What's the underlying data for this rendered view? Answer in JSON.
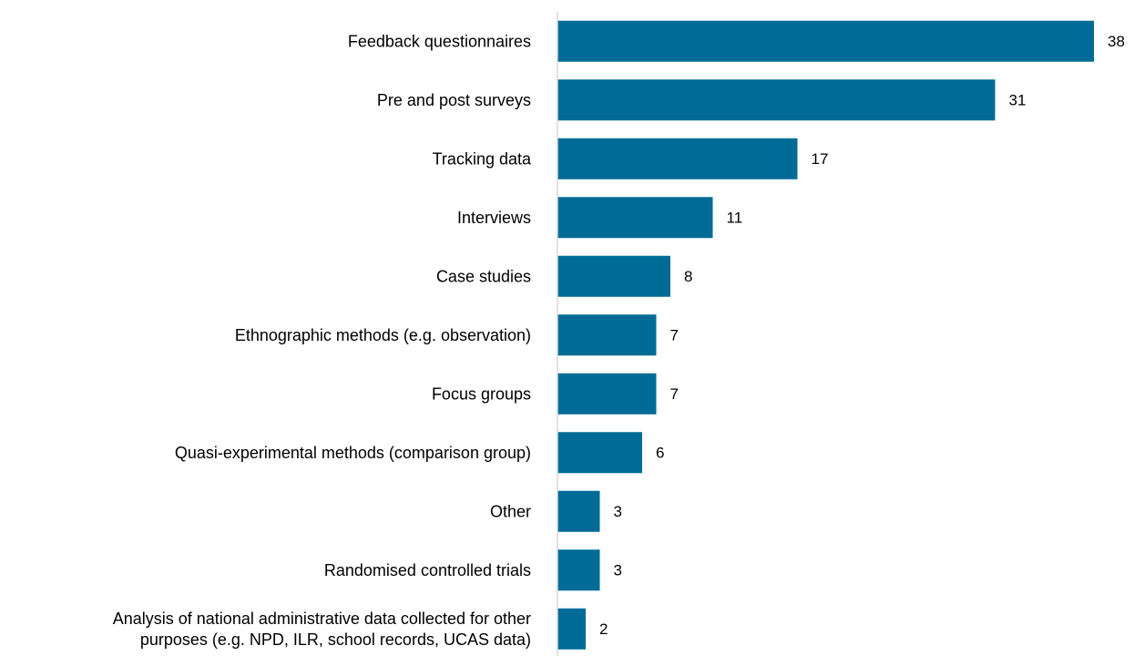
{
  "chart_data": {
    "type": "bar",
    "orientation": "horizontal",
    "title": "",
    "xlabel": "",
    "ylabel": "",
    "categories": [
      [
        "Feedback questionnaires"
      ],
      [
        "Pre and post surveys"
      ],
      [
        "Tracking data"
      ],
      [
        "Interviews"
      ],
      [
        "Case studies"
      ],
      [
        "Ethnographic methods (e.g. observation)"
      ],
      [
        "Focus groups"
      ],
      [
        "Quasi-experimental methods (comparison group)"
      ],
      [
        "Other"
      ],
      [
        "Randomised controlled trials"
      ],
      [
        "Analysis of national administrative data collected for other",
        "purposes (e.g. NPD, ILR, school records, UCAS data)"
      ]
    ],
    "values": [
      38,
      31,
      17,
      11,
      8,
      7,
      7,
      6,
      3,
      3,
      2
    ],
    "value_labels": [
      "38",
      "31",
      "17",
      "11",
      "8",
      "7",
      "7",
      "6",
      "3",
      "3",
      "2"
    ],
    "xlim": [
      0,
      38
    ],
    "grid": false,
    "legend": "none",
    "bar_color": "#006B96",
    "axis_color": "#D9D9D9"
  }
}
